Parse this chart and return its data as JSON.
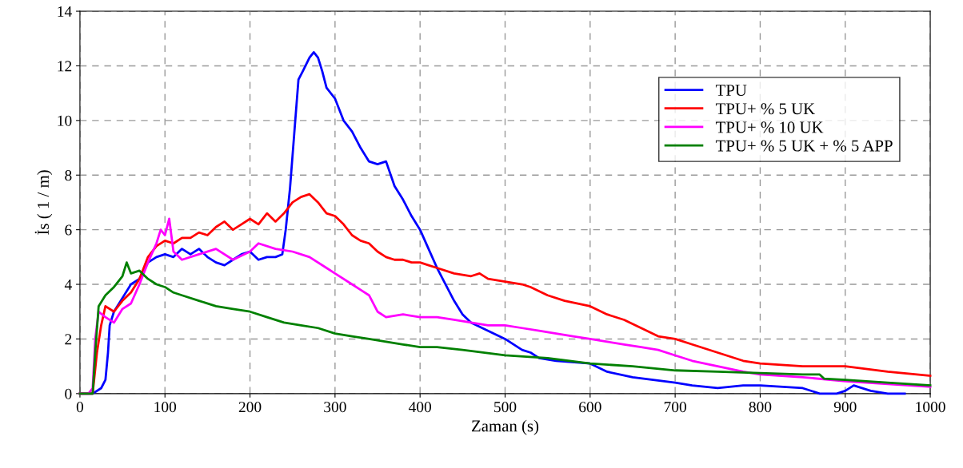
{
  "chart_data": {
    "type": "line",
    "xlabel": "Zaman (s)",
    "ylabel": "İs ( 1 / m)",
    "xlim": [
      0,
      1000
    ],
    "ylim": [
      0,
      14
    ],
    "xticks": [
      0,
      100,
      200,
      300,
      400,
      500,
      600,
      700,
      800,
      900,
      1000
    ],
    "yticks": [
      0,
      2,
      4,
      6,
      8,
      10,
      12,
      14
    ],
    "grid": true,
    "legend": "top right",
    "line_style": "solid",
    "marker": "none",
    "series": [
      {
        "name": "TPU",
        "color": "#0000ff",
        "x": [
          0,
          15,
          25,
          30,
          33,
          35,
          40,
          50,
          60,
          70,
          80,
          90,
          100,
          110,
          120,
          130,
          140,
          150,
          160,
          170,
          180,
          190,
          200,
          210,
          220,
          230,
          238,
          242,
          247,
          252,
          257,
          262,
          270,
          275,
          280,
          285,
          290,
          300,
          310,
          320,
          330,
          340,
          350,
          360,
          370,
          380,
          390,
          400,
          410,
          420,
          430,
          440,
          450,
          460,
          480,
          500,
          520,
          530,
          540,
          560,
          600,
          620,
          650,
          700,
          720,
          750,
          780,
          800,
          850,
          870,
          890,
          900,
          910,
          930,
          950,
          970
        ],
        "values": [
          0,
          0,
          0.2,
          0.5,
          1.5,
          2.5,
          3,
          3.5,
          4.0,
          4.2,
          4.8,
          5.0,
          5.1,
          5.0,
          5.3,
          5.1,
          5.3,
          5.0,
          4.8,
          4.7,
          4.9,
          5.1,
          5.2,
          4.9,
          5.0,
          5.0,
          5.1,
          6.0,
          7.5,
          9.5,
          11.5,
          11.8,
          12.3,
          12.5,
          12.3,
          11.8,
          11.2,
          10.8,
          10.0,
          9.6,
          9.0,
          8.5,
          8.4,
          8.5,
          7.6,
          7.1,
          6.5,
          6.0,
          5.3,
          4.6,
          4.0,
          3.4,
          2.9,
          2.6,
          2.3,
          2.0,
          1.6,
          1.5,
          1.3,
          1.2,
          1.1,
          0.8,
          0.6,
          0.4,
          0.3,
          0.2,
          0.3,
          0.3,
          0.2,
          0.0,
          0.0,
          0.1,
          0.3,
          0.1,
          0.0,
          0.0
        ]
      },
      {
        "name": "TPU+ % 5 UK",
        "color": "#ff0000",
        "x": [
          0,
          15,
          20,
          25,
          30,
          40,
          50,
          60,
          70,
          80,
          90,
          100,
          110,
          120,
          130,
          140,
          150,
          160,
          170,
          180,
          190,
          200,
          210,
          220,
          230,
          240,
          250,
          260,
          270,
          280,
          290,
          300,
          310,
          320,
          330,
          340,
          350,
          360,
          370,
          380,
          390,
          400,
          410,
          420,
          440,
          460,
          470,
          480,
          500,
          520,
          530,
          550,
          570,
          600,
          620,
          640,
          660,
          680,
          700,
          720,
          750,
          780,
          800,
          850,
          900,
          950,
          1000
        ],
        "values": [
          0,
          0,
          1.5,
          2.5,
          3.2,
          3.0,
          3.4,
          3.7,
          4.2,
          5.0,
          5.4,
          5.6,
          5.5,
          5.7,
          5.7,
          5.9,
          5.8,
          6.1,
          6.3,
          6.0,
          6.2,
          6.4,
          6.2,
          6.6,
          6.3,
          6.6,
          7.0,
          7.2,
          7.3,
          7.0,
          6.6,
          6.5,
          6.2,
          5.8,
          5.6,
          5.5,
          5.2,
          5.0,
          4.9,
          4.9,
          4.8,
          4.8,
          4.7,
          4.6,
          4.4,
          4.3,
          4.4,
          4.2,
          4.1,
          4.0,
          3.9,
          3.6,
          3.4,
          3.2,
          2.9,
          2.7,
          2.4,
          2.1,
          2.0,
          1.8,
          1.5,
          1.2,
          1.1,
          1.0,
          1.0,
          0.8,
          0.65
        ]
      },
      {
        "name": "TPU+ % 10 UK",
        "color": "#ff00ff",
        "x": [
          0,
          10,
          15,
          18,
          22,
          30,
          40,
          50,
          60,
          70,
          80,
          90,
          95,
          100,
          105,
          110,
          120,
          140,
          160,
          180,
          200,
          210,
          230,
          250,
          270,
          290,
          300,
          320,
          330,
          340,
          350,
          360,
          380,
          400,
          420,
          440,
          460,
          480,
          500,
          520,
          540,
          560,
          580,
          600,
          620,
          640,
          660,
          680,
          700,
          720,
          750,
          780,
          800,
          850,
          900,
          950,
          1000
        ],
        "values": [
          0,
          0,
          0.2,
          2.0,
          3.0,
          2.8,
          2.6,
          3.1,
          3.3,
          4.0,
          4.8,
          5.5,
          6.0,
          5.8,
          6.4,
          5.2,
          4.9,
          5.1,
          5.3,
          4.9,
          5.2,
          5.5,
          5.3,
          5.2,
          5.0,
          4.6,
          4.4,
          4.0,
          3.8,
          3.6,
          3.0,
          2.8,
          2.9,
          2.8,
          2.8,
          2.7,
          2.6,
          2.5,
          2.5,
          2.4,
          2.3,
          2.2,
          2.1,
          2.0,
          1.9,
          1.8,
          1.7,
          1.6,
          1.4,
          1.2,
          1.0,
          0.8,
          0.7,
          0.6,
          0.45,
          0.35,
          0.25
        ]
      },
      {
        "name": "TPU+ % 5 UK + % 5 APP",
        "color": "#008000",
        "x": [
          0,
          15,
          18,
          22,
          30,
          40,
          50,
          55,
          60,
          70,
          80,
          90,
          100,
          110,
          120,
          140,
          160,
          180,
          200,
          220,
          240,
          260,
          280,
          300,
          320,
          340,
          360,
          380,
          400,
          420,
          450,
          500,
          550,
          600,
          650,
          700,
          750,
          800,
          850,
          870,
          875,
          900,
          950,
          1000
        ],
        "values": [
          0,
          0,
          1.5,
          3.2,
          3.6,
          3.9,
          4.3,
          4.8,
          4.4,
          4.5,
          4.2,
          4.0,
          3.9,
          3.7,
          3.6,
          3.4,
          3.2,
          3.1,
          3.0,
          2.8,
          2.6,
          2.5,
          2.4,
          2.2,
          2.1,
          2.0,
          1.9,
          1.8,
          1.7,
          1.7,
          1.6,
          1.4,
          1.3,
          1.1,
          1.0,
          0.85,
          0.8,
          0.75,
          0.7,
          0.7,
          0.55,
          0.5,
          0.4,
          0.3
        ]
      }
    ]
  }
}
